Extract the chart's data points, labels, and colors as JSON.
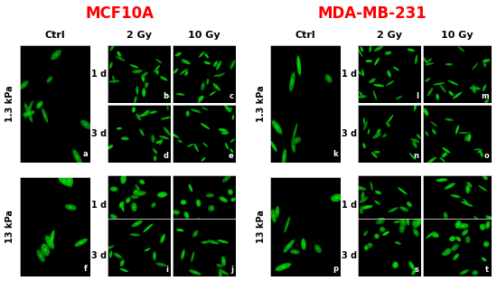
{
  "title_left": "MCF10A",
  "title_right": "MDA-MB-231",
  "title_color": "#ff0000",
  "title_fontsize": 12,
  "col_labels": [
    "2 Gy",
    "10 Gy"
  ],
  "ctrl_label": "Ctrl",
  "time_labels": [
    "1 d",
    "3 d"
  ],
  "stiffness_top": "1.3 kPa",
  "stiffness_bot": "13 kPa",
  "bg_color": "#ffffff",
  "panel_bg": "#000000",
  "label_color": "#ffffff",
  "axis_label_color": "#000000",
  "panel_label_fontsize": 6,
  "col_header_fontsize": 8,
  "stiffness_fontsize": 7,
  "time_fontsize": 7
}
